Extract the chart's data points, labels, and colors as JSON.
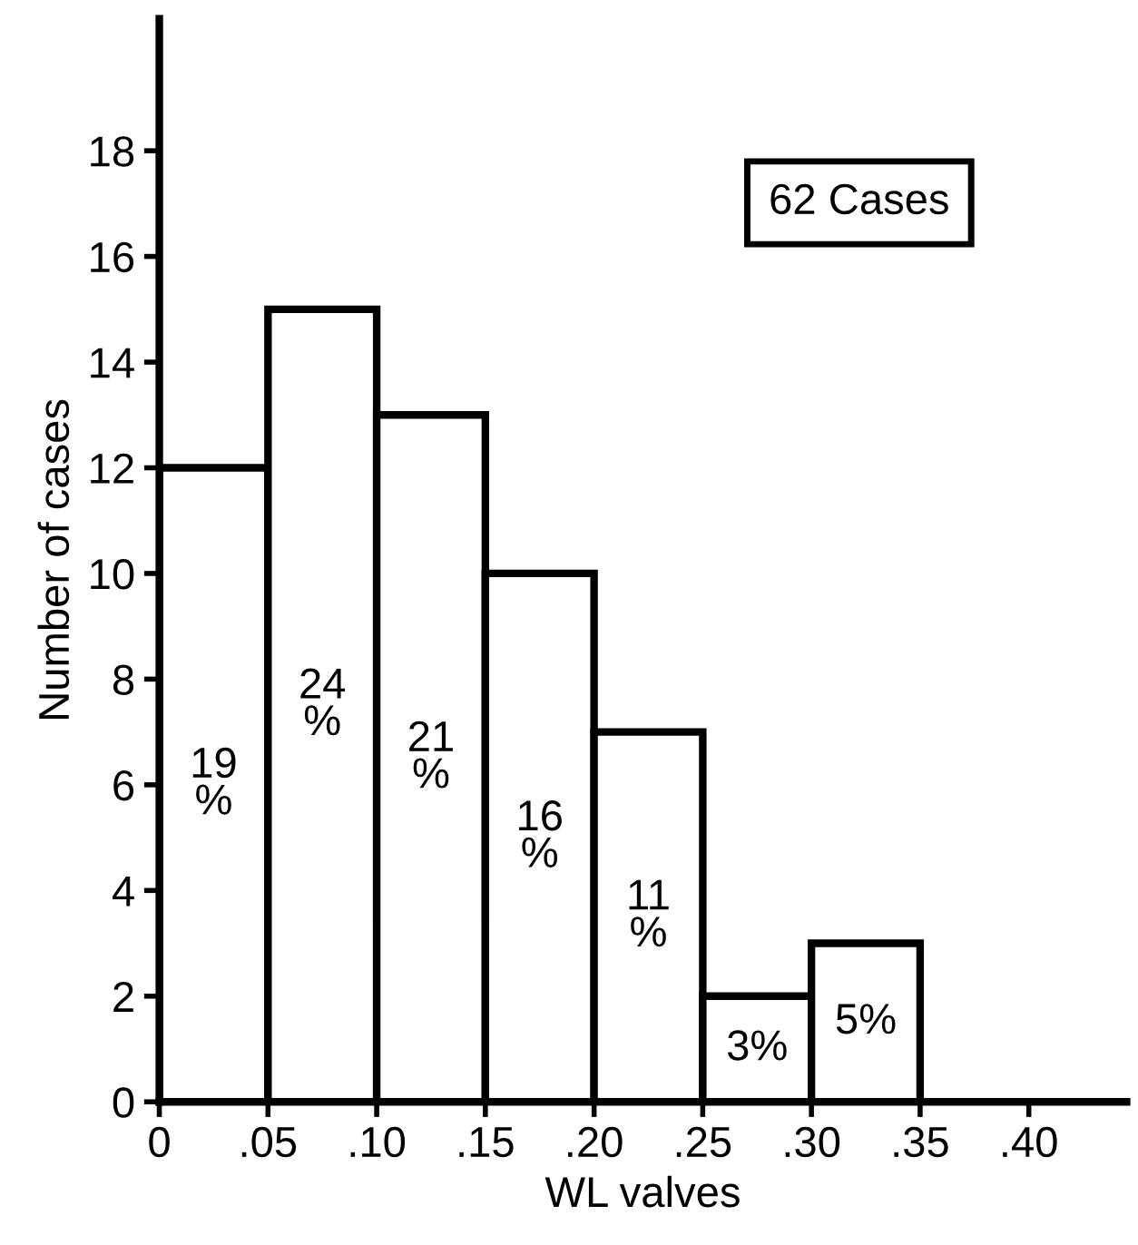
{
  "chart_data": {
    "type": "histogram",
    "xlabel": "WL valves",
    "ylabel": "Number of cases",
    "bins": [
      0,
      0.05,
      0.1,
      0.15,
      0.2,
      0.25,
      0.3,
      0.35
    ],
    "values": [
      12,
      15,
      13,
      10,
      7,
      2,
      3
    ],
    "color": "#ffffff",
    "xlim": [
      0,
      0.445
    ],
    "ylim": [
      0,
      20.5
    ],
    "xticks": [
      0,
      {
        "value": 0.05,
        "label": ".05"
      },
      {
        "value": 0.1,
        "label": ".10"
      },
      {
        "value": 0.15,
        "label": ".15"
      },
      {
        "value": 0.2,
        "label": ".20"
      },
      {
        "value": 0.25,
        "label": ".25"
      },
      {
        "value": 0.3,
        "label": ".30"
      },
      {
        "value": 0.35,
        "label": ".35"
      },
      {
        "value": 0.4,
        "label": ".40"
      }
    ],
    "yticks": [
      0,
      2,
      4,
      6,
      8,
      10,
      12,
      14,
      16,
      18
    ],
    "annotations": [
      "62 Cases",
      "19\n%",
      "24\n%",
      "21\n%",
      "16\n%",
      "11\n%",
      "3%",
      "5%"
    ],
    "grid": false,
    "legend": false
  }
}
